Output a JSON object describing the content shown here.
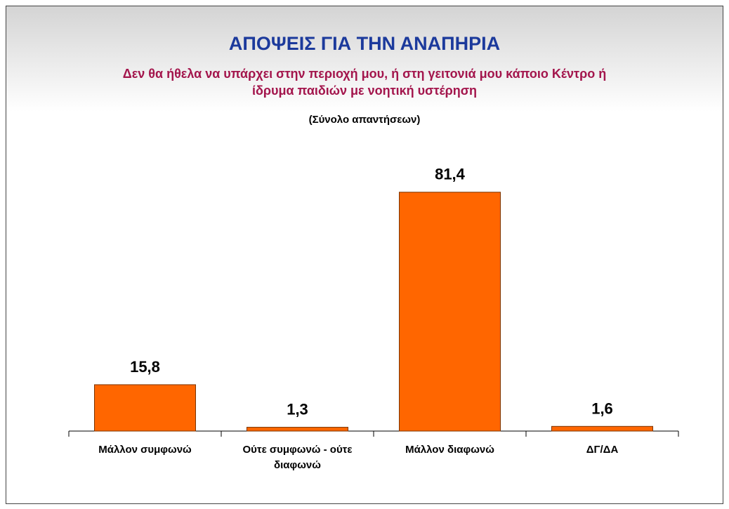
{
  "chart_data": {
    "type": "bar",
    "title": "ΑΠΟΨΕΙΣ ΓΙΑ ΤΗΝ ΑΝΑΠΗΡΙΑ",
    "subtitle": "Δεν θα ήθελα να υπάρχει στην περιοχή μου, ή στη γειτονιά μου κάποιο Κέντρο ή ίδρυμα παιδιών με νοητική υστέρηση",
    "note": "(Σύνολο απαντήσεων)",
    "categories": [
      "Μάλλον συμφωνώ",
      "Ούτε συμφωνώ - ούτε διαφωνώ",
      "Μάλλον διαφωνώ",
      "ΔΓ/ΔΑ"
    ],
    "values": [
      15.8,
      1.3,
      81.4,
      1.6
    ],
    "value_labels": [
      "15,8",
      "1,3",
      "81,4",
      "1,6"
    ],
    "color": "#ff6600"
  }
}
